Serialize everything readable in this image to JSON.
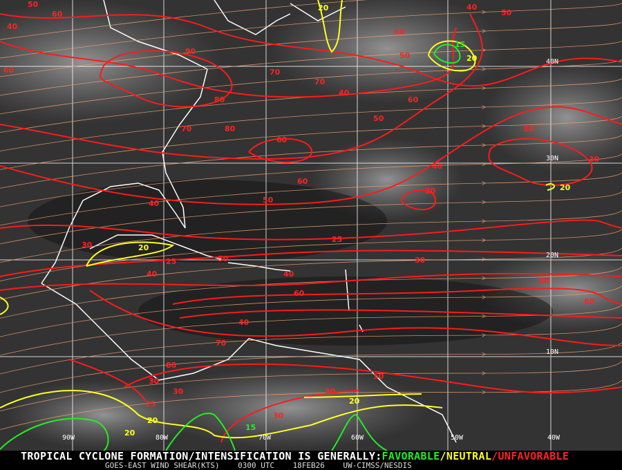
{
  "caption": {
    "headline": "TROPICAL CYCLONE FORMATION/INTENSIFICATION IS GENERALLY:",
    "favorable": "FAVORABLE",
    "sep1": "/",
    "neutral": "NEUTRAL",
    "sep2": "/",
    "unfavorable": "UNFAVORABLE",
    "product": "GOES-EAST WIND SHEAR(KTS)",
    "time": "0300 UTC",
    "date": "18FEB26",
    "source": "UW-CIMSS/NESDIS"
  },
  "colors": {
    "favorable": "#22ee22",
    "neutral": "#ffff22",
    "unfavorable": "#ff2222",
    "streamline": "#f0a070",
    "grid": "#ffffff"
  },
  "grid": {
    "lon_labels": [
      "90W",
      "80W",
      "70W",
      "60W",
      "50W",
      "40W"
    ],
    "lat_labels": [
      "40N",
      "30N",
      "20N",
      "10N"
    ]
  },
  "contour_labels": [
    {
      "v": "50",
      "c": "unfavorable"
    },
    {
      "v": "60",
      "c": "unfavorable"
    },
    {
      "v": "40",
      "c": "unfavorable"
    },
    {
      "v": "60",
      "c": "unfavorable"
    },
    {
      "v": "90",
      "c": "unfavorable"
    },
    {
      "v": "70",
      "c": "unfavorable"
    },
    {
      "v": "80",
      "c": "unfavorable"
    },
    {
      "v": "70",
      "c": "unfavorable"
    },
    {
      "v": "80",
      "c": "unfavorable"
    },
    {
      "v": "60",
      "c": "unfavorable"
    },
    {
      "v": "40",
      "c": "unfavorable"
    },
    {
      "v": "50",
      "c": "unfavorable"
    },
    {
      "v": "60",
      "c": "unfavorable"
    },
    {
      "v": "60",
      "c": "unfavorable"
    },
    {
      "v": "50",
      "c": "unfavorable"
    },
    {
      "v": "40",
      "c": "unfavorable"
    },
    {
      "v": "20",
      "c": "neutral"
    },
    {
      "v": "15",
      "c": "favorable"
    },
    {
      "v": "20",
      "c": "neutral"
    },
    {
      "v": "30",
      "c": "unfavorable"
    },
    {
      "v": "40",
      "c": "unfavorable"
    },
    {
      "v": "50",
      "c": "unfavorable"
    },
    {
      "v": "60",
      "c": "unfavorable"
    },
    {
      "v": "50",
      "c": "unfavorable"
    },
    {
      "v": "40",
      "c": "unfavorable"
    },
    {
      "v": "30",
      "c": "unfavorable"
    },
    {
      "v": "30",
      "c": "unfavorable"
    },
    {
      "v": "25",
      "c": "unfavorable"
    },
    {
      "v": "20",
      "c": "neutral"
    },
    {
      "v": "40",
      "c": "unfavorable"
    },
    {
      "v": "50",
      "c": "unfavorable"
    },
    {
      "v": "30",
      "c": "unfavorable"
    },
    {
      "v": "20",
      "c": "neutral"
    },
    {
      "v": "25",
      "c": "unfavorable"
    },
    {
      "v": "30",
      "c": "unfavorable"
    },
    {
      "v": "40",
      "c": "unfavorable"
    },
    {
      "v": "50",
      "c": "unfavorable"
    },
    {
      "v": "60",
      "c": "unfavorable"
    },
    {
      "v": "60",
      "c": "unfavorable"
    },
    {
      "v": "70",
      "c": "unfavorable"
    },
    {
      "v": "80",
      "c": "unfavorable"
    },
    {
      "v": "70",
      "c": "unfavorable"
    },
    {
      "v": "50",
      "c": "unfavorable"
    },
    {
      "v": "40",
      "c": "unfavorable"
    },
    {
      "v": "30",
      "c": "unfavorable"
    },
    {
      "v": "20",
      "c": "neutral"
    },
    {
      "v": "30",
      "c": "unfavorable"
    },
    {
      "v": "25",
      "c": "unfavorable"
    },
    {
      "v": "20",
      "c": "neutral"
    },
    {
      "v": "20",
      "c": "neutral"
    },
    {
      "v": "15",
      "c": "favorable"
    },
    {
      "v": "30",
      "c": "unfavorable"
    },
    {
      "v": "30",
      "c": "unfavorable"
    }
  ]
}
